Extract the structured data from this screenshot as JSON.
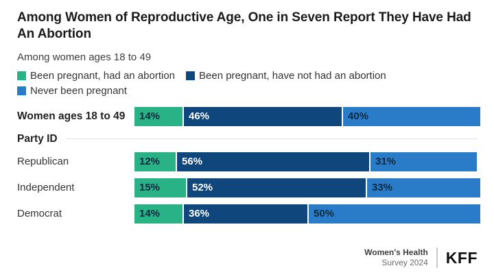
{
  "header": {
    "title": "Among Women of Reproductive Age, One in Seven Report They Have Had An Abortion",
    "subtitle": "Among women ages 18 to 49"
  },
  "colors": {
    "green": "#2ab287",
    "navy": "#0f477c",
    "blue": "#2a7cc9",
    "value_label_dark": "#0d2840",
    "value_label_light": "#ffffff"
  },
  "legend": {
    "items": [
      {
        "label": "Been pregnant, had an abortion",
        "color": "#2ab287"
      },
      {
        "label": "Been pregnant, have not had an abortion",
        "color": "#0f477c"
      },
      {
        "label": "Never been pregnant",
        "color": "#2a7cc9"
      }
    ]
  },
  "section": {
    "label": "Party ID"
  },
  "rows": [
    {
      "label": "Women ages 18 to 49",
      "segments": [
        {
          "text": "14%",
          "value": 14
        },
        {
          "text": "46%",
          "value": 46
        },
        {
          "text": "40%",
          "value": 40
        }
      ]
    },
    {
      "label": "Republican",
      "segments": [
        {
          "text": "12%",
          "value": 12
        },
        {
          "text": "56%",
          "value": 56
        },
        {
          "text": "31%",
          "value": 31
        }
      ]
    },
    {
      "label": "Independent",
      "segments": [
        {
          "text": "15%",
          "value": 15
        },
        {
          "text": "52%",
          "value": 52
        },
        {
          "text": "33%",
          "value": 33
        }
      ]
    },
    {
      "label": "Democrat",
      "segments": [
        {
          "text": "14%",
          "value": 14
        },
        {
          "text": "36%",
          "value": 36
        },
        {
          "text": "50%",
          "value": 50
        }
      ]
    }
  ],
  "chart_data": {
    "type": "bar",
    "stacked": true,
    "orientation": "horizontal",
    "title": "Among Women of Reproductive Age, One in Seven Report They Have Had An Abortion",
    "subtitle": "Among women ages 18 to 49",
    "categories": [
      "Women ages 18 to 49",
      "Republican",
      "Independent",
      "Democrat"
    ],
    "group_label": "Party ID",
    "series": [
      {
        "name": "Been pregnant, had an abortion",
        "color": "#2ab287",
        "values": [
          14,
          12,
          15,
          14
        ]
      },
      {
        "name": "Been pregnant, have not had an abortion",
        "color": "#0f477c",
        "values": [
          46,
          56,
          52,
          36
        ]
      },
      {
        "name": "Never been pregnant",
        "color": "#2a7cc9",
        "values": [
          40,
          31,
          33,
          50
        ]
      }
    ],
    "value_format": "percent",
    "xlim": [
      0,
      100
    ],
    "legend_position": "top",
    "grid": false
  },
  "footer": {
    "source_line1": "Women's Health",
    "source_line2": "Survey 2024",
    "logo": "KFF"
  }
}
